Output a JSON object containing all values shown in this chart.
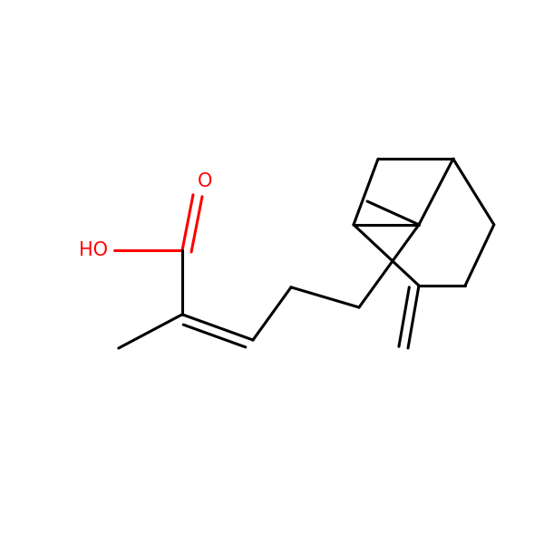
{
  "background_color": "#ffffff",
  "bond_color": "#000000",
  "red_color": "#ff0000",
  "lw": 2.2,
  "figsize": [
    6.0,
    6.0
  ],
  "dpi": 100
}
